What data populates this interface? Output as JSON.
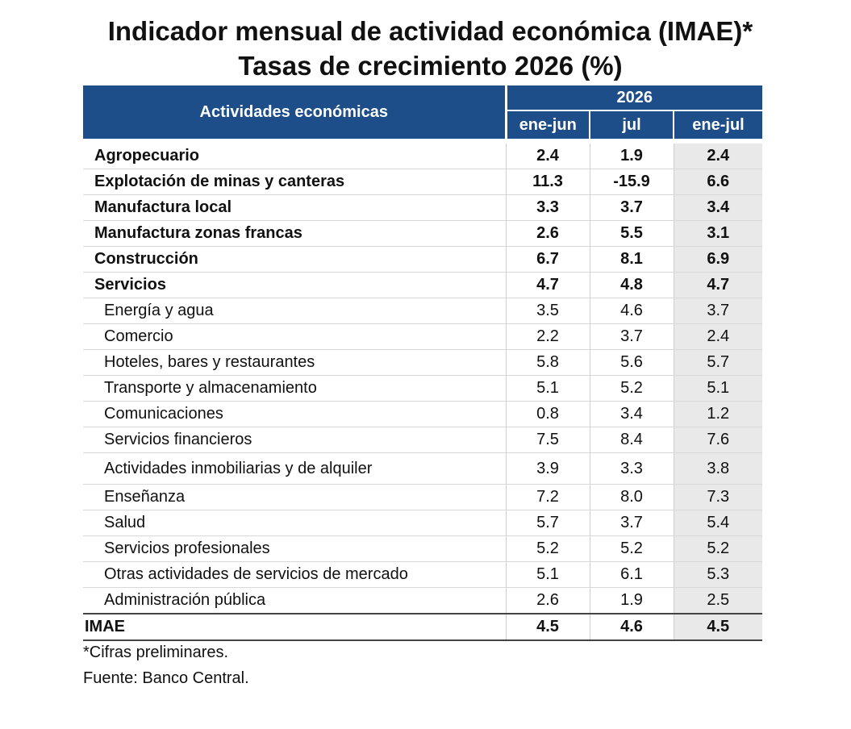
{
  "title_line1": "Indicador mensual de actividad económica (IMAE)*",
  "title_line2": "Tasas de crecimiento 2026 (%)",
  "table": {
    "header_activities": "Actividades económicas",
    "header_year": "2026",
    "columns": [
      "ene-jun",
      "jul",
      "ene-jul"
    ],
    "rows": [
      {
        "label": "Agropecuario",
        "values": [
          "2.4",
          "1.9",
          "2.4"
        ]
      },
      {
        "label": "Explotación de minas y canteras",
        "values": [
          "11.3",
          "-15.9",
          "6.6"
        ]
      },
      {
        "label": "Manufactura local",
        "values": [
          "3.3",
          "3.7",
          "3.4"
        ]
      },
      {
        "label": "Manufactura zonas francas",
        "values": [
          "2.6",
          "5.5",
          "3.1"
        ]
      },
      {
        "label": "Construcción",
        "values": [
          "6.7",
          "8.1",
          "6.9"
        ]
      },
      {
        "label": "Servicios",
        "values": [
          "4.7",
          "4.8",
          "4.7"
        ]
      },
      {
        "label": "Energía y agua",
        "values": [
          "3.5",
          "4.6",
          "3.7"
        ]
      },
      {
        "label": "Comercio",
        "values": [
          "2.2",
          "3.7",
          "2.4"
        ]
      },
      {
        "label": "Hoteles, bares y restaurantes",
        "values": [
          "5.8",
          "5.6",
          "5.7"
        ]
      },
      {
        "label": "Transporte y almacenamiento",
        "values": [
          "5.1",
          "5.2",
          "5.1"
        ]
      },
      {
        "label": "Comunicaciones",
        "values": [
          "0.8",
          "3.4",
          "1.2"
        ]
      },
      {
        "label": "Servicios financieros",
        "values": [
          "7.5",
          "8.4",
          "7.6"
        ]
      },
      {
        "label": "Actividades inmobiliarias y de alquiler",
        "values": [
          "3.9",
          "3.3",
          "3.8"
        ]
      },
      {
        "label": "Enseñanza",
        "values": [
          "7.2",
          "8.0",
          "7.3"
        ]
      },
      {
        "label": "Salud",
        "values": [
          "5.7",
          "3.7",
          "5.4"
        ]
      },
      {
        "label": "Servicios profesionales",
        "values": [
          "5.2",
          "5.2",
          "5.2"
        ]
      },
      {
        "label": "Otras actividades de servicios de mercado",
        "values": [
          "5.1",
          "6.1",
          "5.3"
        ]
      },
      {
        "label": "Administración pública",
        "values": [
          "2.6",
          "1.9",
          "2.5"
        ]
      },
      {
        "label": "IMAE",
        "values": [
          "4.5",
          "4.6",
          "4.5"
        ]
      }
    ]
  },
  "notes": {
    "preliminary": "*Cifras preliminares.",
    "source": "Fuente: Banco Central."
  },
  "colors": {
    "header_bg": "#1d4e89",
    "shaded_col": "#e9e9e9"
  }
}
